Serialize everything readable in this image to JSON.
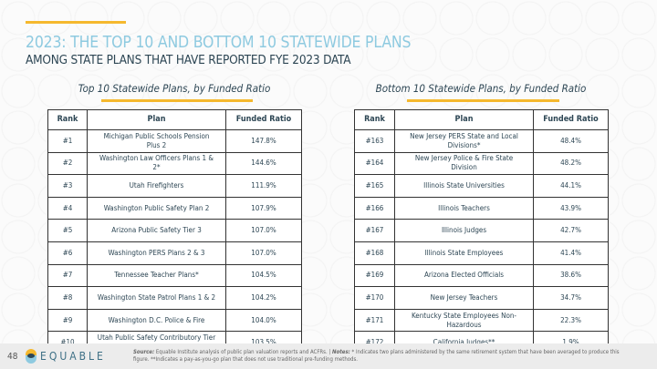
{
  "page": {
    "title": "2023: THE TOP 10 AND BOTTOM 10 STATEWIDE PLANS",
    "subtitle": "AMONG STATE PLANS THAT HAVE REPORTED FYE 2023 DATA",
    "number": "48"
  },
  "brand": "EQUABLE",
  "colors": {
    "accent": "#f5b82e",
    "title": "#8ecae0",
    "text": "#2d4654"
  },
  "headers": {
    "rank": "Rank",
    "plan": "Plan",
    "ratio": "Funded Ratio"
  },
  "top": {
    "heading": "Top 10 Statewide Plans, by Funded Ratio",
    "rows": [
      {
        "rank": "#1",
        "plan": "Michigan Public Schools Pension Plus 2",
        "ratio": "147.8%"
      },
      {
        "rank": "#2",
        "plan": "Washington Law Officers Plans 1 & 2*",
        "ratio": "144.6%"
      },
      {
        "rank": "#3",
        "plan": "Utah Firefighters",
        "ratio": "111.9%"
      },
      {
        "rank": "#4",
        "plan": "Washington Public Safety Plan 2",
        "ratio": "107.9%"
      },
      {
        "rank": "#5",
        "plan": "Arizona Public Safety Tier 3",
        "ratio": "107.0%"
      },
      {
        "rank": "#6",
        "plan": "Washington PERS Plans 2 & 3",
        "ratio": "107.0%"
      },
      {
        "rank": "#7",
        "plan": "Tennessee Teacher Plans*",
        "ratio": "104.5%"
      },
      {
        "rank": "#8",
        "plan": "Washington State Patrol Plans 1 & 2",
        "ratio": "104.2%"
      },
      {
        "rank": "#9",
        "plan": "Washington D.C. Police & Fire",
        "ratio": "104.0%"
      },
      {
        "rank": "#10",
        "plan": "Utah Public Safety Contributory Tier 1",
        "ratio": "103.5%"
      }
    ]
  },
  "bottom": {
    "heading": "Bottom 10 Statewide Plans, by Funded Ratio",
    "rows": [
      {
        "rank": "#163",
        "plan": "New Jersey PERS State and Local Divisions*",
        "ratio": "48.4%"
      },
      {
        "rank": "#164",
        "plan": "New Jersey Police & Fire State Division",
        "ratio": "48.2%"
      },
      {
        "rank": "#165",
        "plan": "Illinois State Universities",
        "ratio": "44.1%"
      },
      {
        "rank": "#166",
        "plan": "Illinois Teachers",
        "ratio": "43.9%"
      },
      {
        "rank": "#167",
        "plan": "Illinois Judges",
        "ratio": "42.7%"
      },
      {
        "rank": "#168",
        "plan": "Illinois State Employees",
        "ratio": "41.4%"
      },
      {
        "rank": "#169",
        "plan": "Arizona Elected Officials",
        "ratio": "38.6%"
      },
      {
        "rank": "#170",
        "plan": "New Jersey Teachers",
        "ratio": "34.7%"
      },
      {
        "rank": "#171",
        "plan": "Kentucky State Employees Non-Hazardous",
        "ratio": "22.3%"
      },
      {
        "rank": "#172",
        "plan": "California Judges**",
        "ratio": "1.9%"
      }
    ]
  },
  "footer": {
    "source_label": "Source:",
    "source": "Equable Institute analysis of public plan valuation reports and ACFRs. |",
    "notes_label": "Notes:",
    "notes": "* Indicates two plans administered by the same retirement system that have been averaged to produce this figure. **Indicates a pay-as-you-go plan that does not use traditional pre-funding methods."
  }
}
